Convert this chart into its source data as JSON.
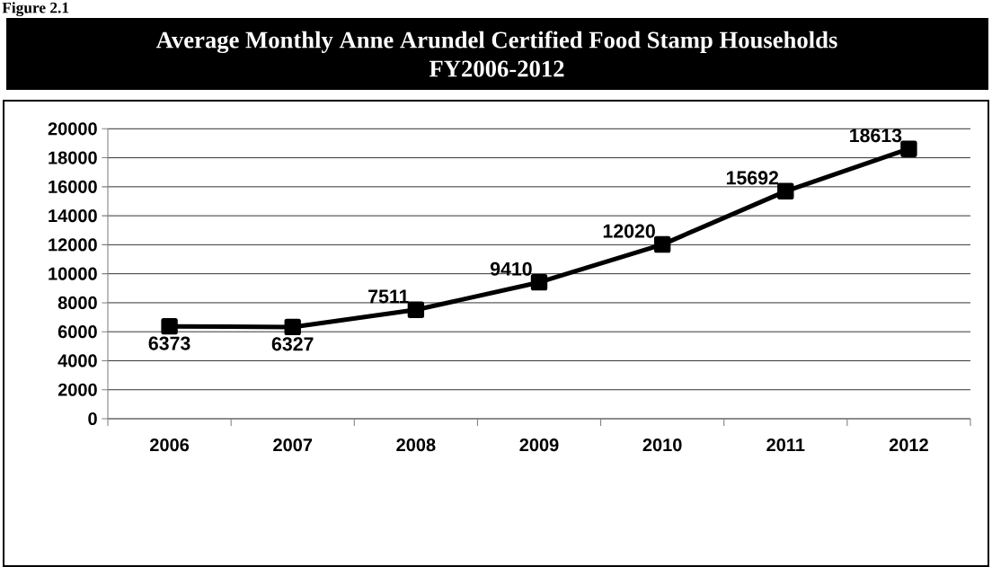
{
  "chart_data": {
    "type": "line",
    "title": "Average Monthly Anne Arundel Certified Food Stamp Households",
    "subtitle": "FY2006-2012",
    "annotations": [
      "Figure 2.1"
    ],
    "categories": [
      "2006",
      "2007",
      "2008",
      "2009",
      "2010",
      "2011",
      "2012"
    ],
    "values": [
      6373,
      6327,
      7511,
      9410,
      12020,
      15692,
      18613
    ],
    "color": "#000000",
    "marker": "square",
    "line_style": "solid",
    "ylim": [
      0,
      20000
    ],
    "yticks": [
      0,
      2000,
      4000,
      6000,
      8000,
      10000,
      12000,
      14000,
      16000,
      18000,
      20000
    ],
    "grid": "y",
    "data_labels": true
  }
}
